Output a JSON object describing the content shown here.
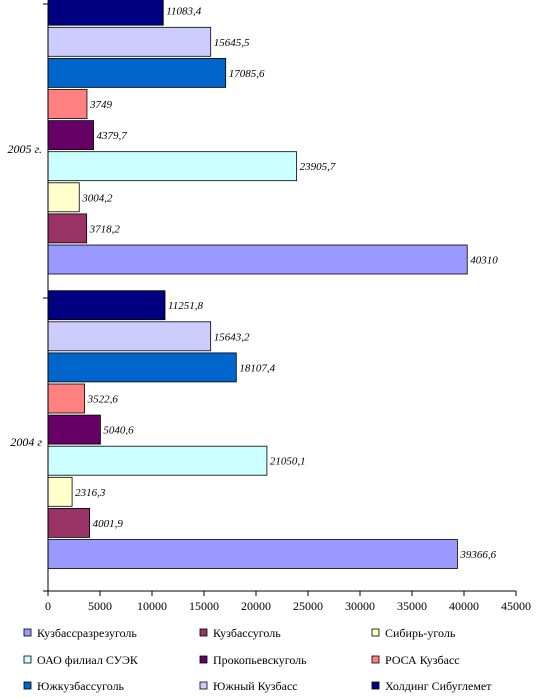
{
  "chart_data": {
    "type": "bar",
    "orientation": "horizontal",
    "categories": [
      "2004 г",
      "2005 г."
    ],
    "xlim": [
      0,
      45000
    ],
    "x_ticks": [
      "0",
      "5000",
      "10000",
      "15000",
      "20000",
      "25000",
      "30000",
      "35000",
      "40000",
      "45000"
    ],
    "grid": false,
    "legend_position": "bottom",
    "series": [
      {
        "name": "Кузбассразрезуголь",
        "color": "#9999FF",
        "values": [
          39366.6,
          40310
        ],
        "labels": [
          "39366,6",
          "40310"
        ]
      },
      {
        "name": "Кузбассуголь",
        "color": "#993366",
        "values": [
          4001.9,
          3718.2
        ],
        "labels": [
          "4001,9",
          "3718,2"
        ]
      },
      {
        "name": "Сибирь-уголь",
        "color": "#FFFFCC",
        "values": [
          2316.3,
          3004.2
        ],
        "labels": [
          "2316,3",
          "3004,2"
        ]
      },
      {
        "name": "ОАО филиал СУЭК",
        "color": "#CCFFFF",
        "values": [
          21050.1,
          23905.7
        ],
        "labels": [
          "21050,1",
          "23905,7"
        ]
      },
      {
        "name": "Прокопьевскуголь",
        "color": "#660066",
        "values": [
          5040.6,
          4379.7
        ],
        "labels": [
          "5040,6",
          "4379,7"
        ]
      },
      {
        "name": "РОСА Кузбасс",
        "color": "#FF8080",
        "values": [
          3522.6,
          3749
        ],
        "labels": [
          "3522,6",
          "3749"
        ]
      },
      {
        "name": "Южкузбассуголь",
        "color": "#0066CC",
        "values": [
          18107.4,
          17085.6
        ],
        "labels": [
          "18107,4",
          "17085,6"
        ]
      },
      {
        "name": "Южный Кузбасс",
        "color": "#CCCCFF",
        "values": [
          15643.2,
          15645.5
        ],
        "labels": [
          "15643,2",
          "15645,5"
        ]
      },
      {
        "name": "Холдинг Сибуглемет",
        "color": "#000080",
        "values": [
          11251.8,
          11083.4
        ],
        "labels": [
          "11251,8",
          "11083,4"
        ]
      }
    ]
  }
}
